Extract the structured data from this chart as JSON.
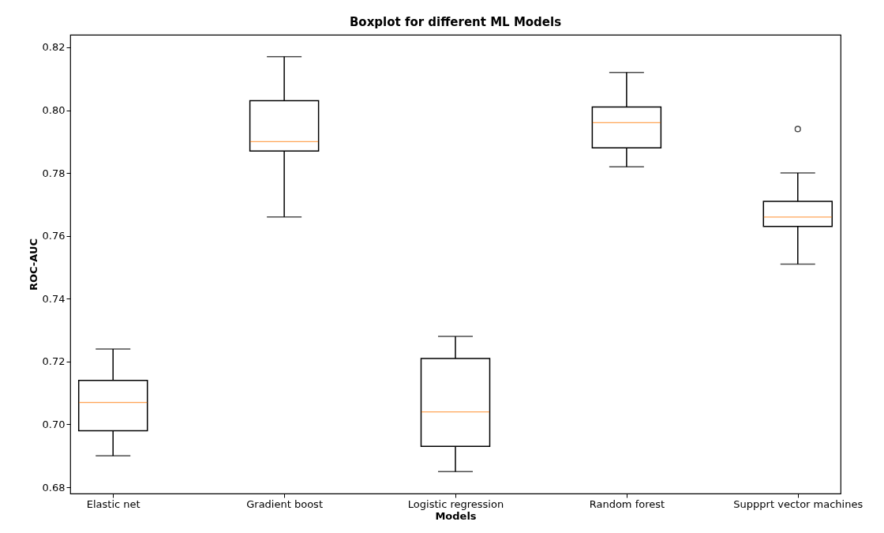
{
  "chart_data": {
    "type": "box",
    "title": "Boxplot for different ML Models",
    "xlabel": "Models",
    "ylabel": "ROC-AUC",
    "categories": [
      "Elastic net",
      "Gradient boost",
      "Logistic regression",
      "Random forest",
      "Suppprt vector machines"
    ],
    "boxes": [
      {
        "low": 0.69,
        "q1": 0.698,
        "median": 0.707,
        "q3": 0.714,
        "high": 0.724
      },
      {
        "low": 0.766,
        "q1": 0.787,
        "median": 0.79,
        "q3": 0.803,
        "high": 0.817
      },
      {
        "low": 0.685,
        "q1": 0.693,
        "median": 0.704,
        "q3": 0.721,
        "high": 0.728
      },
      {
        "low": 0.782,
        "q1": 0.788,
        "median": 0.796,
        "q3": 0.801,
        "high": 0.812
      },
      {
        "low": 0.751,
        "q1": 0.763,
        "median": 0.766,
        "q3": 0.771,
        "high": 0.78,
        "outliers": [
          0.794
        ]
      }
    ],
    "ylim": [
      0.678,
      0.824
    ],
    "yticks": [
      0.68,
      {
        "value": 0.7,
        "label": "0.70"
      },
      0.72,
      0.74,
      0.76,
      0.78,
      {
        "value": 0.8,
        "label": "0.80"
      },
      0.82
    ]
  }
}
